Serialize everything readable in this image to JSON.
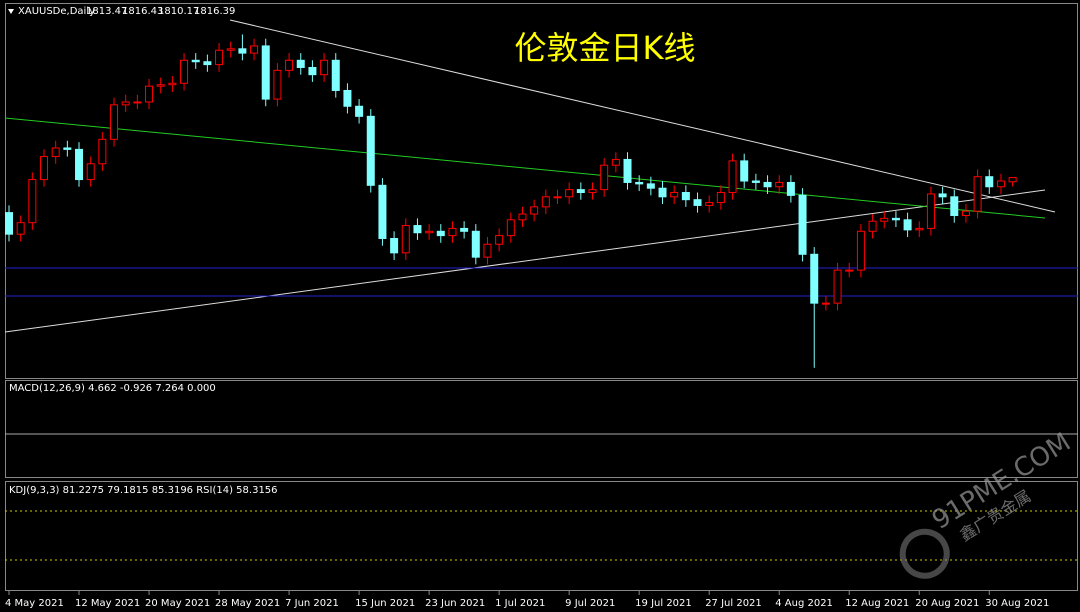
{
  "chart_data": {
    "type": "candlestick",
    "title": "伦敦金日K线",
    "symbol": "XAUUSDe,Daily",
    "macd_label": "MACD(12,26,9) 4.662 -0.926 7.264 0.000",
    "kdj_label": "KDJ(9,3,3) 81.2275 79.1815 85.3196  RSI(14) 58.3156",
    "watermark": "91PME.COM",
    "watermark_sub": "鑫广贵金属",
    "up_color": "#ff0000",
    "down_color": "#7fffff",
    "ylim": [
      1679,
      1933
    ],
    "categories": [
      "4 May 2021",
      null,
      null,
      null,
      null,
      null,
      "12 May 2021",
      null,
      null,
      null,
      null,
      null,
      "20 May 2021",
      null,
      null,
      null,
      null,
      null,
      "28 May 2021",
      null,
      null,
      null,
      null,
      null,
      "7 Jun 2021",
      null,
      null,
      null,
      null,
      null,
      "15 Jun 2021",
      null,
      null,
      null,
      null,
      null,
      "23 Jun 2021",
      null,
      null,
      null,
      null,
      null,
      "1 Jul 2021",
      null,
      null,
      null,
      null,
      null,
      "9 Jul 2021",
      null,
      null,
      null,
      null,
      null,
      "19 Jul 2021",
      null,
      null,
      null,
      null,
      null,
      "27 Jul 2021",
      null,
      null,
      null,
      null,
      null,
      "4 Aug 2021",
      null,
      null,
      null,
      null,
      null,
      "12 Aug 2021",
      null,
      null,
      null,
      null,
      null,
      "20 Aug 2021",
      null,
      null,
      null,
      null,
      null,
      "30 Aug 2021",
      null,
      null
    ],
    "open": [
      1792,
      1777,
      1785,
      1815,
      1831,
      1837,
      1836,
      1815,
      1826,
      1843,
      1867,
      1869,
      1869,
      1880,
      1881,
      1882,
      1898,
      1897,
      1895,
      1905,
      1906,
      1903,
      1908,
      1871,
      1891,
      1898,
      1893,
      1888,
      1898,
      1877,
      1866,
      1859,
      1811,
      1774,
      1764,
      1783,
      1778,
      1779,
      1776,
      1781,
      1779,
      1761,
      1770,
      1776,
      1787,
      1791,
      1796,
      1803,
      1803,
      1808,
      1806,
      1808,
      1825,
      1829,
      1813,
      1812,
      1809,
      1803,
      1806,
      1801,
      1797,
      1799,
      1806,
      1828,
      1814,
      1813,
      1810,
      1813,
      1804,
      1763,
      1729,
      1729,
      1752,
      1752,
      1779,
      1786,
      1788,
      1787,
      1780,
      1781,
      1805,
      1803,
      1790,
      1793,
      1817,
      1810,
      1813.47
    ],
    "high": [
      1797,
      1790,
      1820,
      1836,
      1842,
      1842,
      1841,
      1831,
      1848,
      1872,
      1874,
      1874,
      1885,
      1886,
      1887,
      1903,
      1903,
      1902,
      1910,
      1911,
      1916,
      1913,
      1913,
      1896,
      1903,
      1903,
      1898,
      1903,
      1903,
      1882,
      1871,
      1864,
      1816,
      1779,
      1788,
      1788,
      1784,
      1784,
      1786,
      1786,
      1784,
      1775,
      1781,
      1792,
      1796,
      1801,
      1808,
      1808,
      1813,
      1813,
      1813,
      1830,
      1834,
      1834,
      1818,
      1817,
      1814,
      1811,
      1811,
      1806,
      1804,
      1811,
      1833,
      1833,
      1819,
      1818,
      1818,
      1818,
      1809,
      1768,
      1734,
      1757,
      1757,
      1784,
      1791,
      1793,
      1793,
      1792,
      1786,
      1810,
      1810,
      1808,
      1798,
      1822,
      1822,
      1819,
      1816.43
    ],
    "low": [
      1772,
      1772,
      1780,
      1810,
      1826,
      1831,
      1810,
      1810,
      1821,
      1838,
      1862,
      1864,
      1864,
      1875,
      1876,
      1877,
      1892,
      1890,
      1890,
      1900,
      1898,
      1898,
      1866,
      1866,
      1886,
      1888,
      1883,
      1883,
      1872,
      1861,
      1854,
      1806,
      1769,
      1759,
      1759,
      1773,
      1773,
      1771,
      1771,
      1774,
      1756,
      1756,
      1765,
      1771,
      1782,
      1786,
      1791,
      1798,
      1798,
      1801,
      1801,
      1803,
      1820,
      1808,
      1807,
      1804,
      1798,
      1798,
      1796,
      1792,
      1792,
      1794,
      1801,
      1809,
      1808,
      1805,
      1805,
      1799,
      1758,
      1684,
      1724,
      1724,
      1747,
      1747,
      1774,
      1781,
      1782,
      1775,
      1775,
      1776,
      1798,
      1785,
      1785,
      1788,
      1805,
      1805,
      1810.17
    ],
    "close": [
      1777,
      1785,
      1815,
      1831,
      1837,
      1836,
      1815,
      1826,
      1843,
      1867,
      1869,
      1869,
      1880,
      1881,
      1882,
      1898,
      1897,
      1895,
      1905,
      1906,
      1903,
      1908,
      1871,
      1891,
      1898,
      1893,
      1888,
      1898,
      1877,
      1866,
      1859,
      1811,
      1774,
      1764,
      1783,
      1778,
      1779,
      1776,
      1781,
      1779,
      1761,
      1770,
      1776,
      1787,
      1791,
      1796,
      1803,
      1803,
      1808,
      1806,
      1808,
      1825,
      1829,
      1813,
      1812,
      1809,
      1803,
      1806,
      1801,
      1797,
      1799,
      1806,
      1828,
      1814,
      1813,
      1810,
      1813,
      1804,
      1763,
      1729,
      1729,
      1752,
      1752,
      1779,
      1786,
      1788,
      1787,
      1780,
      1781,
      1805,
      1803,
      1790,
      1793,
      1817,
      1810,
      1814,
      1816.39
    ]
  }
}
